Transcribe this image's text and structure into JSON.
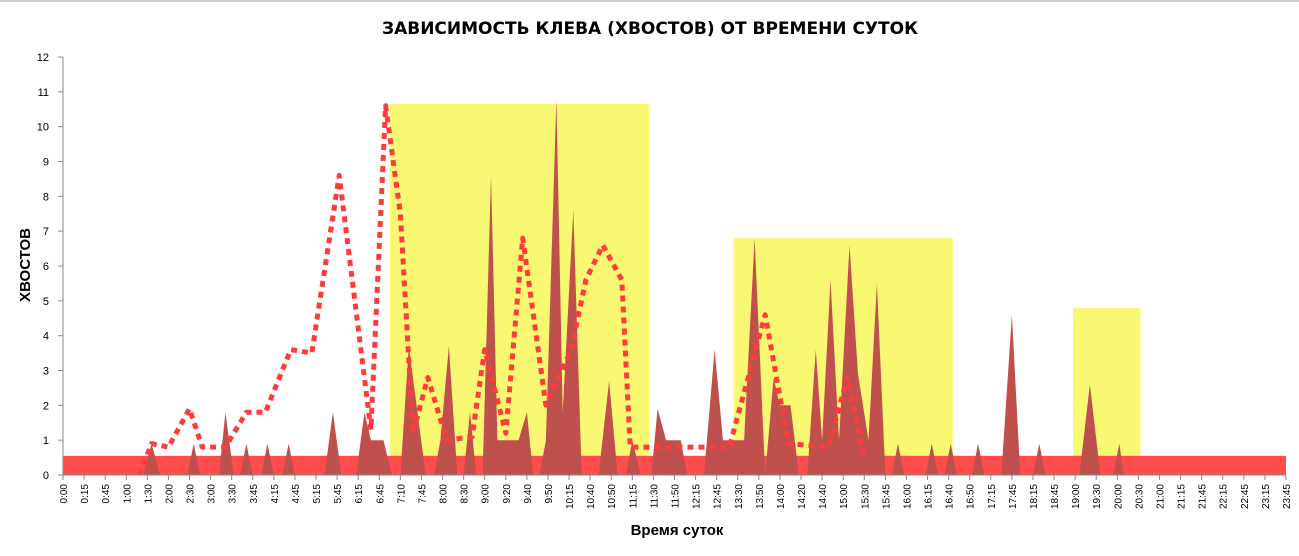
{
  "chart_data": {
    "type": "area",
    "title": "ЗАВИСИМОСТЬ КЛЕВА (ХВОСТОВ)  ОТ ВРЕМЕНИ СУТОК",
    "xlabel": "Время суток",
    "ylabel": "ХВОСТОВ",
    "ylim": [
      0,
      12
    ],
    "yticks": [
      0,
      1,
      2,
      3,
      4,
      5,
      6,
      7,
      8,
      9,
      10,
      11,
      12
    ],
    "x_tick_labels": [
      "0:00",
      "0:15",
      "0:45",
      "1:00",
      "1:30",
      "2:00",
      "2:30",
      "3:00",
      "3:30",
      "3:45",
      "4:15",
      "4:45",
      "5:15",
      "5:45",
      "6:15",
      "6:45",
      "7:10",
      "7:45",
      "8:00",
      "8:30",
      "9:00",
      "9:20",
      "9:40",
      "9:50",
      "10:15",
      "10:40",
      "10:50",
      "11:15",
      "11:30",
      "11:50",
      "12:15",
      "12:45",
      "13:30",
      "13:50",
      "14:00",
      "14:20",
      "14:40",
      "15:00",
      "15:30",
      "15:45",
      "16:00",
      "16:15",
      "16:40",
      "16:50",
      "17:15",
      "17:45",
      "18:15",
      "18:45",
      "19:00",
      "19:30",
      "20:00",
      "20:30",
      "21:00",
      "21:15",
      "21:45",
      "22:15",
      "22:45",
      "23:15",
      "23:45"
    ],
    "grid": false,
    "highlight_regions": [
      {
        "from_index": 15.5,
        "to_index": 27.8,
        "top": 10.65,
        "color": "#f8f872"
      },
      {
        "from_index": 31.8,
        "to_index": 42.2,
        "top": 6.8,
        "color": "#f8f872"
      },
      {
        "from_index": 47.9,
        "to_index": 51.1,
        "top": 4.8,
        "color": "#f8f872"
      }
    ],
    "baseline_band": {
      "value": 0.55,
      "color": "#ff4c4c"
    },
    "series": [
      {
        "type": "area",
        "color": "#c0504d",
        "points": [
          [
            3.8,
            0
          ],
          [
            4.2,
            0.9
          ],
          [
            4.6,
            0
          ],
          [
            5.9,
            0
          ],
          [
            6.2,
            0.9
          ],
          [
            6.5,
            0
          ],
          [
            7.4,
            0
          ],
          [
            7.7,
            1.8
          ],
          [
            8.1,
            0
          ],
          [
            8.4,
            0
          ],
          [
            8.7,
            0.9
          ],
          [
            9.0,
            0
          ],
          [
            9.4,
            0
          ],
          [
            9.7,
            0.9
          ],
          [
            10.0,
            0
          ],
          [
            10.4,
            0
          ],
          [
            10.7,
            0.9
          ],
          [
            11.0,
            0
          ],
          [
            12.4,
            0
          ],
          [
            12.8,
            1.8
          ],
          [
            13.2,
            0
          ],
          [
            13.9,
            0
          ],
          [
            14.3,
            1.8
          ],
          [
            14.6,
            1.0
          ],
          [
            15.2,
            1.0
          ],
          [
            15.6,
            0
          ],
          [
            16.0,
            0
          ],
          [
            16.4,
            3.7
          ],
          [
            17.2,
            0
          ],
          [
            17.6,
            0
          ],
          [
            17.9,
            1.0
          ],
          [
            18.3,
            3.7
          ],
          [
            18.7,
            0
          ],
          [
            19.0,
            0
          ],
          [
            19.3,
            1.8
          ],
          [
            19.6,
            0
          ],
          [
            19.9,
            0
          ],
          [
            20.3,
            8.6
          ],
          [
            20.6,
            1.0
          ],
          [
            21.6,
            1.0
          ],
          [
            22.0,
            1.8
          ],
          [
            22.3,
            0
          ],
          [
            22.6,
            0
          ],
          [
            22.9,
            1.0
          ],
          [
            23.4,
            10.8
          ],
          [
            23.7,
            1.8
          ],
          [
            24.2,
            7.6
          ],
          [
            24.6,
            0
          ],
          [
            25.4,
            0
          ],
          [
            25.9,
            2.7
          ],
          [
            26.3,
            0
          ],
          [
            26.7,
            0
          ],
          [
            27.0,
            1.0
          ],
          [
            27.4,
            0
          ],
          [
            27.9,
            0
          ],
          [
            28.2,
            1.9
          ],
          [
            28.6,
            1.0
          ],
          [
            29.3,
            1.0
          ],
          [
            29.6,
            0
          ],
          [
            30.4,
            0
          ],
          [
            30.9,
            3.6
          ],
          [
            31.3,
            1.0
          ],
          [
            32.3,
            1.0
          ],
          [
            32.8,
            6.8
          ],
          [
            33.3,
            0
          ],
          [
            33.7,
            2.8
          ],
          [
            34.0,
            2.0
          ],
          [
            34.5,
            2.0
          ],
          [
            34.9,
            0
          ],
          [
            35.3,
            0
          ],
          [
            35.7,
            3.6
          ],
          [
            36.0,
            1.0
          ],
          [
            36.4,
            5.6
          ],
          [
            36.8,
            1.0
          ],
          [
            37.3,
            6.6
          ],
          [
            37.7,
            2.9
          ],
          [
            38.2,
            1.0
          ],
          [
            38.6,
            5.5
          ],
          [
            39.0,
            0
          ],
          [
            39.3,
            0
          ],
          [
            39.6,
            0.9
          ],
          [
            39.9,
            0
          ],
          [
            40.9,
            0
          ],
          [
            41.2,
            0.9
          ],
          [
            41.5,
            0
          ],
          [
            41.8,
            0
          ],
          [
            42.1,
            0.9
          ],
          [
            42.4,
            0
          ],
          [
            43.1,
            0
          ],
          [
            43.4,
            0.9
          ],
          [
            43.7,
            0
          ],
          [
            44.5,
            0
          ],
          [
            45.0,
            4.6
          ],
          [
            45.4,
            0
          ],
          [
            46.0,
            0
          ],
          [
            46.3,
            0.9
          ],
          [
            46.6,
            0
          ],
          [
            48.2,
            0
          ],
          [
            48.7,
            2.6
          ],
          [
            49.2,
            0
          ],
          [
            49.8,
            0
          ],
          [
            50.1,
            0.9
          ],
          [
            50.3,
            0
          ]
        ]
      },
      {
        "type": "line",
        "style": "dotted",
        "color": "#ff3c3c",
        "points": [
          [
            3.6,
            0
          ],
          [
            4.2,
            0.9
          ],
          [
            5.0,
            0.8
          ],
          [
            6.0,
            1.9
          ],
          [
            6.6,
            0.8
          ],
          [
            7.7,
            0.8
          ],
          [
            8.7,
            1.8
          ],
          [
            9.6,
            1.8
          ],
          [
            10.8,
            3.6
          ],
          [
            11.8,
            3.5
          ],
          [
            13.1,
            8.6
          ],
          [
            14.6,
            1.3
          ],
          [
            15.3,
            10.6
          ],
          [
            16.0,
            7.5
          ],
          [
            16.6,
            1.2
          ],
          [
            17.3,
            2.8
          ],
          [
            18.2,
            1.0
          ],
          [
            19.4,
            1.1
          ],
          [
            20.0,
            3.6
          ],
          [
            21.0,
            1.2
          ],
          [
            21.8,
            6.8
          ],
          [
            22.9,
            2.0
          ],
          [
            24.1,
            3.6
          ],
          [
            24.8,
            5.6
          ],
          [
            25.6,
            6.6
          ],
          [
            26.5,
            5.6
          ],
          [
            26.9,
            0.8
          ],
          [
            29.9,
            0.8
          ],
          [
            30.3,
            0.8
          ],
          [
            31.6,
            0.8
          ],
          [
            33.3,
            4.6
          ],
          [
            34.4,
            0.9
          ],
          [
            36.3,
            0.8
          ],
          [
            37.2,
            2.8
          ],
          [
            38.0,
            0.5
          ]
        ]
      }
    ]
  }
}
